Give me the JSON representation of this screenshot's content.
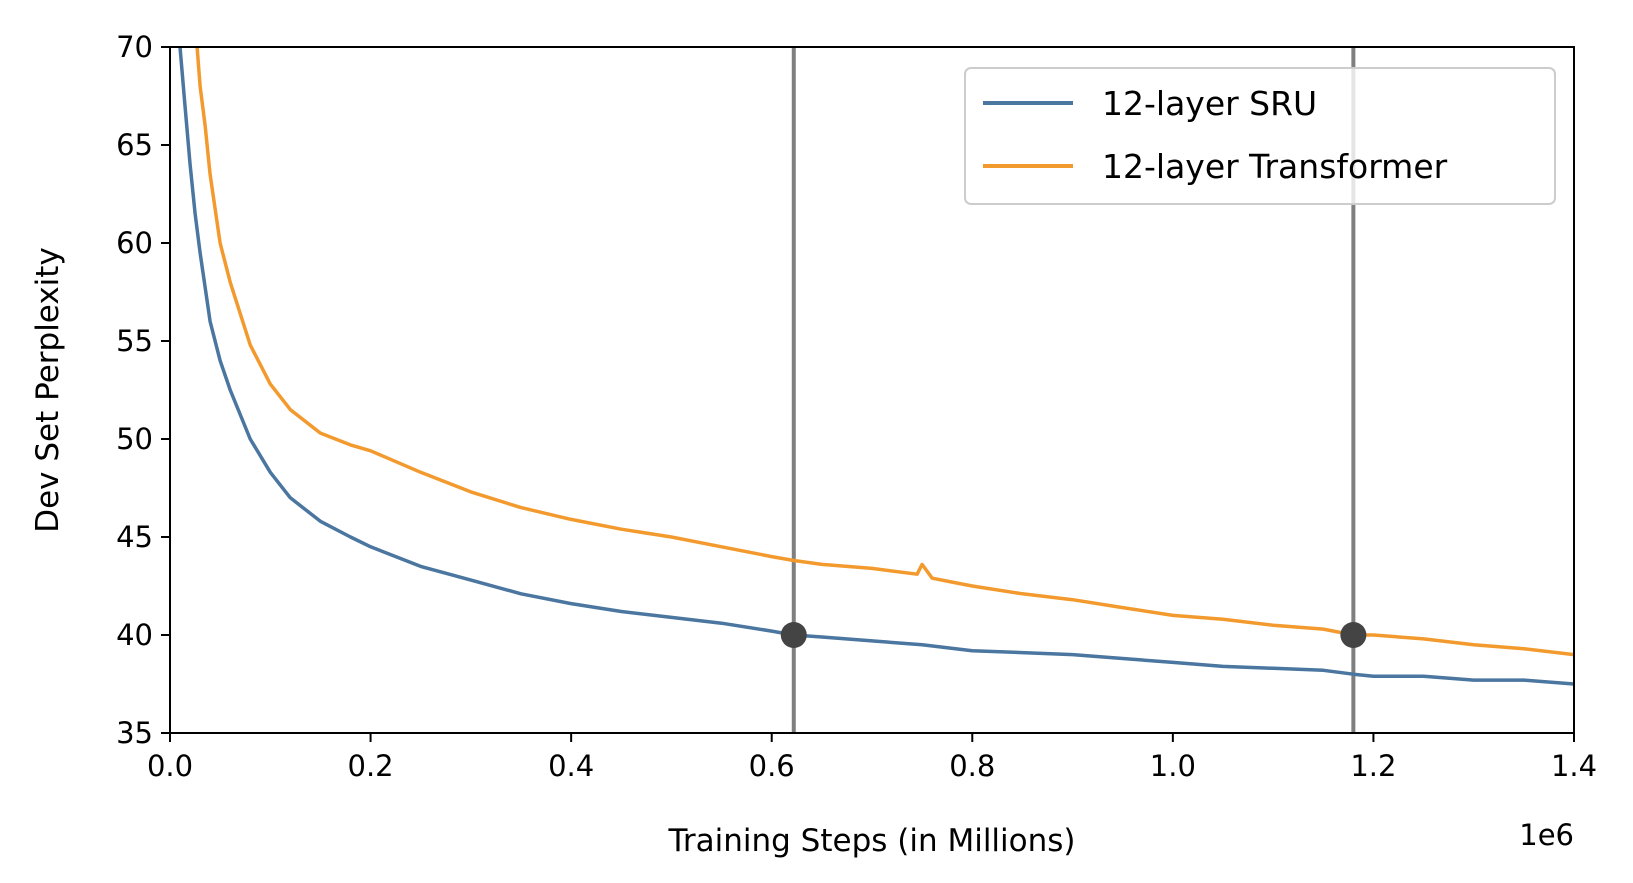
{
  "chart_data": {
    "type": "line",
    "xlabel": "Training Steps (in Millions)",
    "ylabel": "Dev Set Perplexity",
    "x_offset_label": "1e6",
    "xlim": [
      0,
      1400000
    ],
    "ylim": [
      35,
      70
    ],
    "xticks": [
      0,
      200000,
      400000,
      600000,
      800000,
      1000000,
      1200000,
      1400000
    ],
    "xtick_labels": [
      "0.0",
      "0.2",
      "0.4",
      "0.6",
      "0.8",
      "1.0",
      "1.2",
      "1.4"
    ],
    "yticks": [
      35,
      40,
      45,
      50,
      55,
      60,
      65,
      70
    ],
    "ytick_labels": [
      "35",
      "40",
      "45",
      "50",
      "55",
      "60",
      "65",
      "70"
    ],
    "grid": false,
    "legend": "top-right",
    "series": [
      {
        "name": "12-layer SRU",
        "color": "#4a76a0",
        "x": [
          10000,
          15000,
          20000,
          25000,
          30000,
          40000,
          50000,
          60000,
          80000,
          100000,
          120000,
          150000,
          180000,
          200000,
          250000,
          300000,
          350000,
          400000,
          450000,
          500000,
          550000,
          600000,
          622000,
          650000,
          700000,
          750000,
          800000,
          850000,
          900000,
          950000,
          1000000,
          1050000,
          1100000,
          1150000,
          1180000,
          1200000,
          1250000,
          1300000,
          1350000,
          1400000
        ],
        "y": [
          70,
          67,
          64,
          61.5,
          59.5,
          56,
          54,
          52.5,
          50,
          48.3,
          47,
          45.8,
          45,
          44.5,
          43.5,
          42.8,
          42.1,
          41.6,
          41.2,
          40.9,
          40.6,
          40.2,
          40.0,
          39.9,
          39.7,
          39.5,
          39.2,
          39.1,
          39.0,
          38.8,
          38.6,
          38.4,
          38.3,
          38.2,
          38.0,
          37.9,
          37.9,
          37.7,
          37.7,
          37.5
        ]
      },
      {
        "name": "12-layer Transformer",
        "color": "#f39a2e",
        "x": [
          27000,
          30000,
          35000,
          40000,
          50000,
          60000,
          80000,
          100000,
          120000,
          150000,
          180000,
          200000,
          250000,
          300000,
          350000,
          400000,
          450000,
          500000,
          550000,
          600000,
          622000,
          650000,
          700000,
          745000,
          750000,
          760000,
          780000,
          800000,
          850000,
          900000,
          950000,
          1000000,
          1050000,
          1100000,
          1150000,
          1180000,
          1200000,
          1250000,
          1300000,
          1350000,
          1400000
        ],
        "y": [
          70,
          68,
          66,
          63.5,
          60,
          58,
          54.8,
          52.8,
          51.5,
          50.3,
          49.7,
          49.4,
          48.3,
          47.3,
          46.5,
          45.9,
          45.4,
          45.0,
          44.5,
          44.0,
          43.8,
          43.6,
          43.4,
          43.1,
          43.6,
          42.9,
          42.7,
          42.5,
          42.1,
          41.8,
          41.4,
          41.0,
          40.8,
          40.5,
          40.3,
          40.0,
          40.0,
          39.8,
          39.5,
          39.3,
          39.0
        ]
      }
    ],
    "vertical_lines": [
      {
        "x": 622000,
        "color": "#7f7f7f"
      },
      {
        "x": 1180000,
        "color": "#7f7f7f"
      }
    ],
    "markers": [
      {
        "x": 622000,
        "y": 40,
        "color": "#444444"
      },
      {
        "x": 1180000,
        "y": 40,
        "color": "#444444"
      }
    ]
  }
}
